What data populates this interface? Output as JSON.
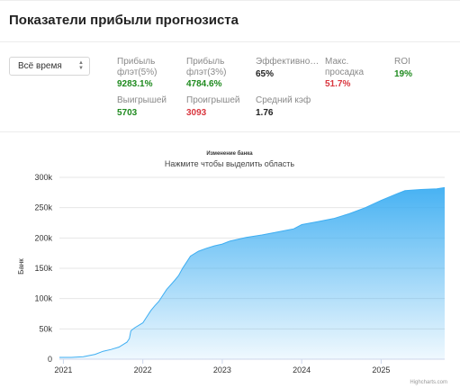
{
  "header": {
    "title": "Показатели прибыли прогнозиста"
  },
  "filter": {
    "period_value": "Всё время"
  },
  "stats": [
    {
      "label": "Прибыль\nфлэт(5%)",
      "value": "9283.1%",
      "color": "#1e8a1e"
    },
    {
      "label": "Прибыль\nфлэт(3%)",
      "value": "4784.6%",
      "color": "#1e8a1e"
    },
    {
      "label": "Эффективно…",
      "value": "65%",
      "color": "#222222"
    },
    {
      "label": "Макс.\nпросадка",
      "value": "51.7%",
      "color": "#d9363e"
    },
    {
      "label": "ROI",
      "value": "19%",
      "color": "#1e8a1e"
    },
    {
      "label": "Выигрышей",
      "value": "5703",
      "color": "#1e8a1e"
    },
    {
      "label": "Проигрышей",
      "value": "3093",
      "color": "#d9363e"
    },
    {
      "label": "Средний кэф",
      "value": "1.76",
      "color": "#222222"
    }
  ],
  "chart_data": {
    "type": "area",
    "title": "Изменение банка",
    "subtitle": "Нажмите чтобы выделить область",
    "ylabel": "Банк",
    "xlabel": "",
    "ylim": [
      0,
      300000
    ],
    "yticks": [
      0,
      50000,
      100000,
      150000,
      200000,
      250000,
      300000
    ],
    "ytick_labels": [
      "0",
      "50k",
      "100k",
      "150k",
      "200k",
      "250k",
      "300k"
    ],
    "xlim": [
      2020.95,
      2025.8
    ],
    "xticks": [
      2021,
      2022,
      2023,
      2024,
      2025
    ],
    "xtick_labels": [
      "2021",
      "2022",
      "2023",
      "2024",
      "2025"
    ],
    "grid": true,
    "legend": "none",
    "series": [
      {
        "color": "#3eaef2",
        "x": [
          2020.95,
          2021.1,
          2021.25,
          2021.4,
          2021.5,
          2021.6,
          2021.7,
          2021.8,
          2021.83,
          2021.85,
          2021.9,
          2022.0,
          2022.1,
          2022.15,
          2022.2,
          2022.3,
          2022.4,
          2022.45,
          2022.5,
          2022.55,
          2022.6,
          2022.7,
          2022.8,
          2022.9,
          2023.0,
          2023.1,
          2023.3,
          2023.5,
          2023.7,
          2023.9,
          2024.0,
          2024.2,
          2024.4,
          2024.6,
          2024.8,
          2025.0,
          2025.2,
          2025.3,
          2025.5,
          2025.7,
          2025.8
        ],
        "y": [
          3000,
          3000,
          4000,
          8000,
          13000,
          16000,
          20000,
          28000,
          34000,
          47000,
          52000,
          60000,
          80000,
          88000,
          95000,
          115000,
          130000,
          138000,
          150000,
          160000,
          170000,
          178000,
          183000,
          187000,
          190000,
          195000,
          201000,
          205000,
          210000,
          215000,
          222000,
          227000,
          232000,
          240000,
          250000,
          262000,
          273000,
          278000,
          280000,
          281000,
          283000
        ]
      }
    ],
    "credits": "Highcharts.com"
  }
}
